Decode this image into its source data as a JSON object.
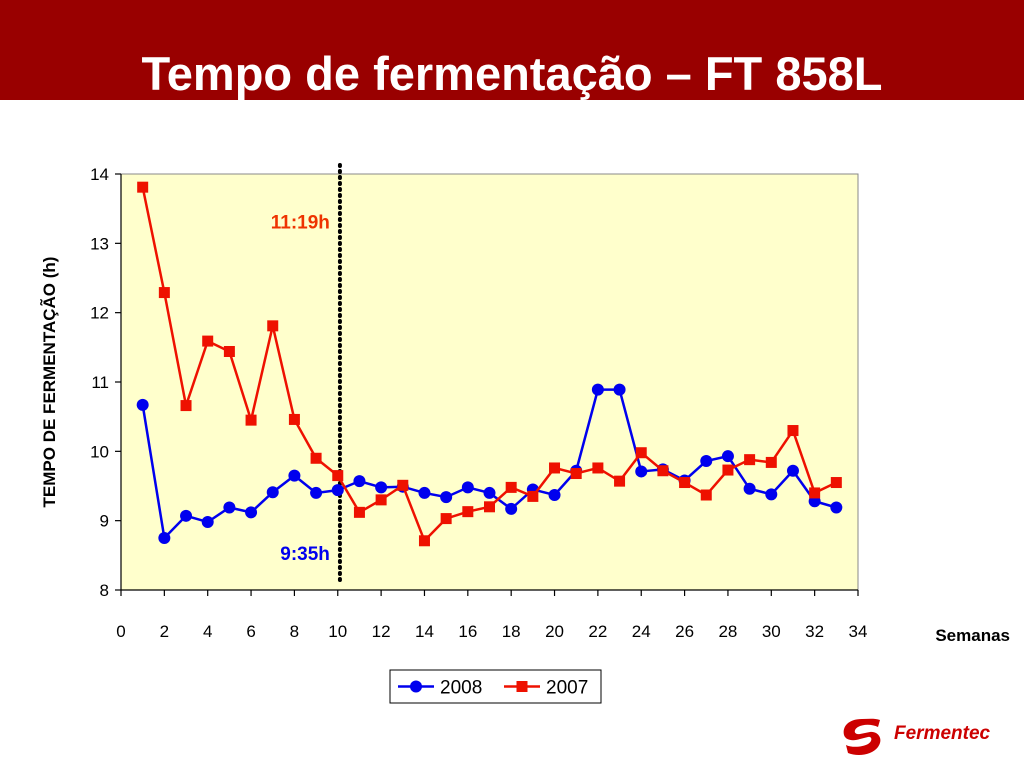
{
  "slide": {
    "title": "Tempo de fermentação – FT 858L",
    "logo_text": "Fermentec",
    "colors": {
      "header": "#990000",
      "plot_bg": "#ffffcc",
      "series_2008": "#0000ee",
      "series_2007": "#ee1100"
    }
  },
  "chart_data": {
    "type": "line",
    "title": "",
    "xlabel": "Semanas",
    "ylabel": "TEMPO DE FERMENTAÇÃO (h)",
    "xlim": [
      0,
      34
    ],
    "ylim": [
      8,
      14
    ],
    "x_ticks": [
      "0",
      "2",
      "4",
      "6",
      "8",
      "10",
      "12",
      "14",
      "16",
      "18",
      "20",
      "22",
      "24",
      "26",
      "28",
      "30",
      "32",
      "34"
    ],
    "y_ticks": [
      "8",
      "9",
      "10",
      "11",
      "12",
      "13",
      "14"
    ],
    "grid": false,
    "legend_position": "bottom-center",
    "annotations": [
      {
        "text": "11:19h",
        "color": "#ee3300",
        "x": 10.1,
        "y": 13.3
      },
      {
        "text": "9:35h",
        "color": "#0000ee",
        "x": 10.1,
        "y": 8.52
      }
    ],
    "vline": {
      "x": 10.1,
      "style": "dotted"
    },
    "series": [
      {
        "name": "2008",
        "marker": "circle",
        "color": "#0000ee",
        "x": [
          1,
          2,
          3,
          4,
          5,
          6,
          7,
          8,
          9,
          10,
          11,
          12,
          13,
          14,
          15,
          16,
          17,
          18,
          19,
          20,
          21,
          22,
          23,
          24,
          25,
          26,
          27,
          28,
          29,
          30,
          31,
          32,
          33
        ],
        "values": [
          10.67,
          8.75,
          9.07,
          8.98,
          9.19,
          9.12,
          9.41,
          9.65,
          9.4,
          9.44,
          9.57,
          9.48,
          9.49,
          9.4,
          9.34,
          9.48,
          9.4,
          9.17,
          9.45,
          9.37,
          9.72,
          10.89,
          10.89,
          9.71,
          9.74,
          9.58,
          9.86,
          9.93,
          9.46,
          9.38,
          9.72,
          9.28,
          9.19
        ]
      },
      {
        "name": "2007",
        "marker": "square",
        "color": "#ee1100",
        "x": [
          1,
          2,
          3,
          4,
          5,
          6,
          7,
          8,
          9,
          10,
          11,
          12,
          13,
          14,
          15,
          16,
          17,
          18,
          19,
          20,
          21,
          22,
          23,
          24,
          25,
          26,
          27,
          28,
          29,
          30,
          31,
          32,
          33
        ],
        "values": [
          13.81,
          12.29,
          10.66,
          11.59,
          11.44,
          10.45,
          11.81,
          10.46,
          9.9,
          9.65,
          9.12,
          9.3,
          9.51,
          8.71,
          9.03,
          9.13,
          9.2,
          9.48,
          9.35,
          9.76,
          9.68,
          9.76,
          9.57,
          9.98,
          9.72,
          9.55,
          9.37,
          9.73,
          9.88,
          9.84,
          10.3,
          9.4,
          9.55
        ]
      }
    ]
  }
}
